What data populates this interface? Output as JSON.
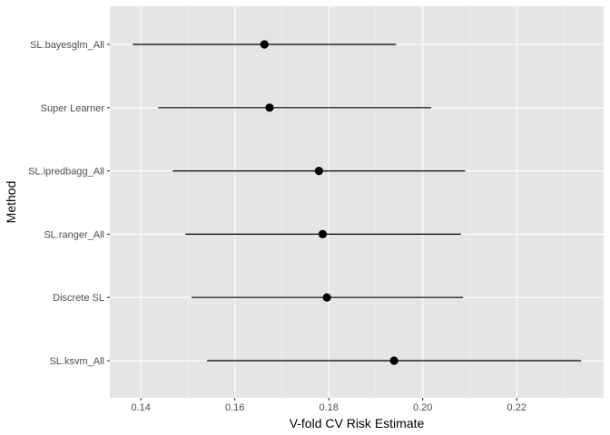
{
  "chart_data": {
    "type": "errorbar-point",
    "title": "",
    "xlabel": "V-fold CV Risk Estimate",
    "ylabel": "Method",
    "xlim": [
      0.1334,
      0.2385
    ],
    "xticks": [
      0.14,
      0.16,
      0.18,
      0.2,
      0.22
    ],
    "xtick_labels": [
      "0.14",
      "0.16",
      "0.18",
      "0.20",
      "0.22"
    ],
    "grid": true,
    "legend": "none",
    "categories": [
      "SL.bayesglm_All",
      "Super Learner",
      "SL.ipredbagg_All",
      "SL.ranger_All",
      "Discrete SL",
      "SL.ksvm_All"
    ],
    "series": [
      {
        "name": "Risk",
        "values": [
          0.1663,
          0.1674,
          0.1779,
          0.1787,
          0.1796,
          0.1939
        ]
      },
      {
        "name": "Lower CI",
        "values": [
          0.1383,
          0.1437,
          0.1468,
          0.1495,
          0.1508,
          0.1541
        ]
      },
      {
        "name": "Upper CI",
        "values": [
          0.1943,
          0.2018,
          0.209,
          0.2081,
          0.2086,
          0.2337
        ]
      }
    ],
    "colors": {
      "panel_bg": "#e5e5e5",
      "grid_major": "#ffffff",
      "grid_minor": "#f2f2f2",
      "point": "#000000",
      "errorbar": "#000000",
      "tick_text": "#4d4d4d"
    }
  }
}
